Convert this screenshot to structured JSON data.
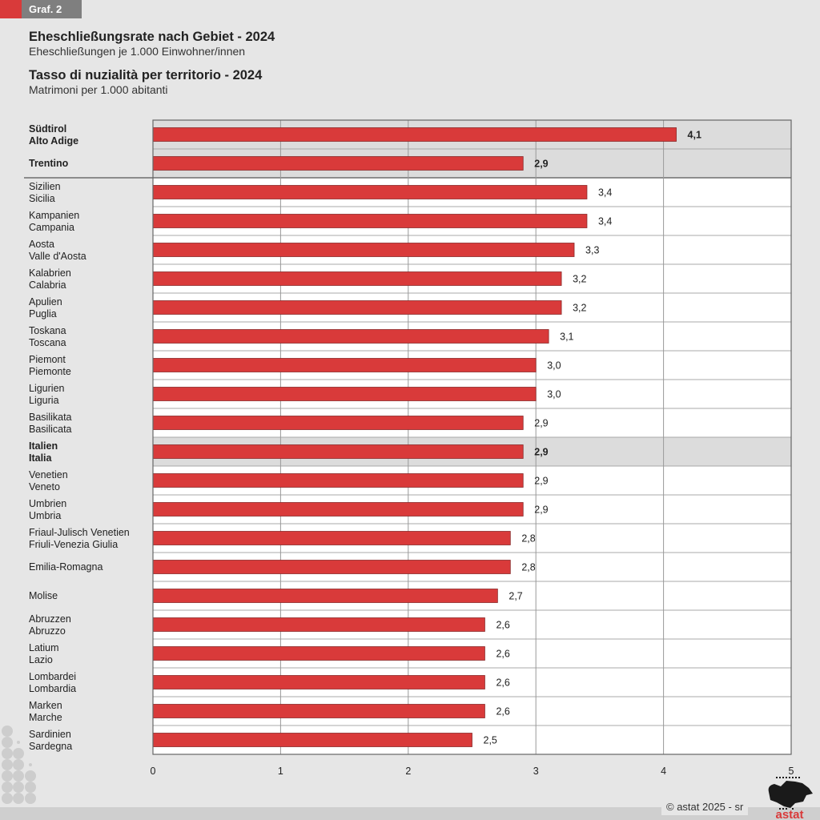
{
  "header": {
    "tag": "Graf. 2",
    "title_de": "Eheschließungsrate nach Gebiet - 2024",
    "subtitle_de": "Eheschließungen je 1.000 Einwohner/innen",
    "title_it": "Tasso di nuzialità per territorio - 2024",
    "subtitle_it": "Matrimoni per 1.000 abitanti"
  },
  "footer": {
    "copyright": "© astat 2025 - sr",
    "logo_text": "astat"
  },
  "colors": {
    "bar": "#d93a3a",
    "highlight_row": "#dcdcdc",
    "background": "#e6e6e6",
    "accent": "#d93a3a"
  },
  "chart_data": {
    "type": "bar",
    "orientation": "horizontal",
    "title": "Eheschließungsrate nach Gebiet - 2024 / Tasso di nuzialità per territorio - 2024",
    "xlabel": "",
    "ylabel": "",
    "xlim": [
      0,
      5
    ],
    "xticks": [
      "0",
      "1",
      "2",
      "3",
      "4",
      "5"
    ],
    "grid": true,
    "categories": [
      {
        "de": "Südtirol",
        "it": "Alto Adige",
        "value": 4.1,
        "label": "4,1",
        "highlight": true,
        "bold": true
      },
      {
        "de": "Trentino",
        "it": "",
        "value": 2.9,
        "label": "2,9",
        "highlight": true,
        "bold": true
      },
      {
        "de": "Sizilien",
        "it": "Sicilia",
        "value": 3.4,
        "label": "3,4",
        "highlight": false,
        "bold": false
      },
      {
        "de": "Kampanien",
        "it": "Campania",
        "value": 3.4,
        "label": "3,4",
        "highlight": false,
        "bold": false
      },
      {
        "de": "Aosta",
        "it": "Valle d'Aosta",
        "value": 3.3,
        "label": "3,3",
        "highlight": false,
        "bold": false
      },
      {
        "de": "Kalabrien",
        "it": "Calabria",
        "value": 3.2,
        "label": "3,2",
        "highlight": false,
        "bold": false
      },
      {
        "de": "Apulien",
        "it": "Puglia",
        "value": 3.2,
        "label": "3,2",
        "highlight": false,
        "bold": false
      },
      {
        "de": "Toskana",
        "it": "Toscana",
        "value": 3.1,
        "label": "3,1",
        "highlight": false,
        "bold": false
      },
      {
        "de": "Piemont",
        "it": "Piemonte",
        "value": 3.0,
        "label": "3,0",
        "highlight": false,
        "bold": false
      },
      {
        "de": "Ligurien",
        "it": "Liguria",
        "value": 3.0,
        "label": "3,0",
        "highlight": false,
        "bold": false
      },
      {
        "de": "Basilikata",
        "it": "Basilicata",
        "value": 2.9,
        "label": "2,9",
        "highlight": false,
        "bold": false
      },
      {
        "de": "Italien",
        "it": "Italia",
        "value": 2.9,
        "label": "2,9",
        "highlight": true,
        "bold": true
      },
      {
        "de": "Venetien",
        "it": "Veneto",
        "value": 2.9,
        "label": "2,9",
        "highlight": false,
        "bold": false
      },
      {
        "de": "Umbrien",
        "it": "Umbria",
        "value": 2.9,
        "label": "2,9",
        "highlight": false,
        "bold": false
      },
      {
        "de": "Friaul-Julisch Venetien",
        "it": "Friuli-Venezia Giulia",
        "value": 2.8,
        "label": "2,8",
        "highlight": false,
        "bold": false
      },
      {
        "de": "Emilia-Romagna",
        "it": "",
        "value": 2.8,
        "label": "2,8",
        "highlight": false,
        "bold": false
      },
      {
        "de": "Molise",
        "it": "",
        "value": 2.7,
        "label": "2,7",
        "highlight": false,
        "bold": false
      },
      {
        "de": "Abruzzen",
        "it": "Abruzzo",
        "value": 2.6,
        "label": "2,6",
        "highlight": false,
        "bold": false
      },
      {
        "de": "Latium",
        "it": "Lazio",
        "value": 2.6,
        "label": "2,6",
        "highlight": false,
        "bold": false
      },
      {
        "de": "Lombardei",
        "it": "Lombardia",
        "value": 2.6,
        "label": "2,6",
        "highlight": false,
        "bold": false
      },
      {
        "de": "Marken",
        "it": "Marche",
        "value": 2.6,
        "label": "2,6",
        "highlight": false,
        "bold": false
      },
      {
        "de": "Sardinien",
        "it": "Sardegna",
        "value": 2.5,
        "label": "2,5",
        "highlight": false,
        "bold": false
      }
    ],
    "values": [
      4.1,
      2.9,
      3.4,
      3.4,
      3.3,
      3.2,
      3.2,
      3.1,
      3.0,
      3.0,
      2.9,
      2.9,
      2.9,
      2.9,
      2.8,
      2.8,
      2.7,
      2.6,
      2.6,
      2.6,
      2.6,
      2.5
    ]
  }
}
